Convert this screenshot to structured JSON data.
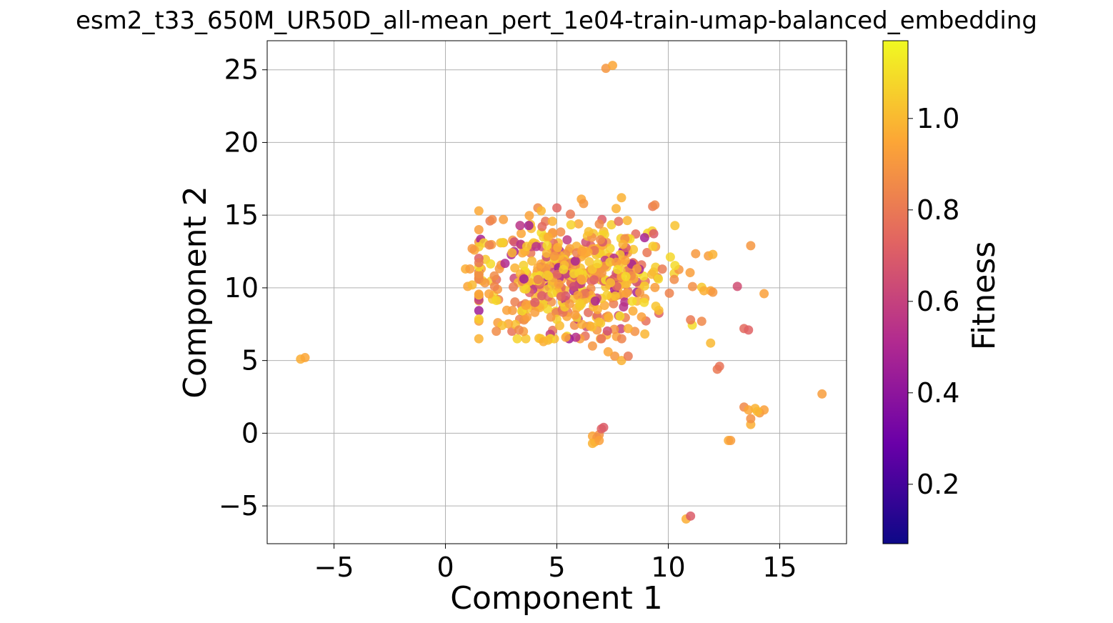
{
  "chart_data": {
    "type": "scatter",
    "title": "esm2_t33_650M_UR50D_all-mean_pert_1e04-train-umap-balanced_embedding",
    "xlabel": "Component 1",
    "ylabel": "Component 2",
    "xlim": [
      -8,
      18
    ],
    "ylim": [
      -7.6,
      27
    ],
    "xticks": [
      -5,
      0,
      5,
      10,
      15
    ],
    "xtick_labels": [
      "−5",
      "0",
      "5",
      "10",
      "15"
    ],
    "yticks": [
      -5,
      0,
      5,
      10,
      15,
      20,
      25
    ],
    "ytick_labels": [
      "−5",
      "0",
      "5",
      "10",
      "15",
      "20",
      "25"
    ],
    "grid": true,
    "colorbar": {
      "label": "Fitness",
      "range": [
        0.07,
        1.17
      ],
      "ticks": [
        0.2,
        0.4,
        0.6,
        0.8,
        1.0
      ],
      "tick_labels": [
        "0.2",
        "0.4",
        "0.6",
        "0.8",
        "1.0"
      ],
      "colormap": "plasma",
      "colors": [
        "#0d0887",
        "#6a00a8",
        "#b12a90",
        "#e16462",
        "#fca636",
        "#f0f921"
      ]
    },
    "cluster_main": {
      "center": [
        5.6,
        10.8
      ],
      "spread": [
        2.3,
        2.0
      ],
      "count": 520
    },
    "points": [
      [
        -6.5,
        5.1,
        0.97
      ],
      [
        -6.3,
        5.2,
        0.95
      ],
      [
        7.2,
        25.1,
        0.9
      ],
      [
        7.5,
        25.3,
        0.95
      ],
      [
        6.6,
        -0.2,
        0.95
      ],
      [
        6.7,
        -0.6,
        0.97
      ],
      [
        6.8,
        -0.3,
        0.9
      ],
      [
        6.9,
        -0.1,
        0.88
      ],
      [
        7.0,
        0.3,
        0.72
      ],
      [
        7.1,
        0.4,
        0.7
      ],
      [
        6.6,
        -0.7,
        0.98
      ],
      [
        6.9,
        -0.5,
        0.93
      ],
      [
        10.8,
        -5.9,
        0.97
      ],
      [
        11.0,
        -5.7,
        0.7
      ],
      [
        12.7,
        -0.5,
        0.96
      ],
      [
        12.8,
        -0.5,
        0.92
      ],
      [
        13.4,
        1.8,
        0.85
      ],
      [
        13.6,
        1.6,
        0.95
      ],
      [
        13.7,
        0.6,
        0.97
      ],
      [
        13.9,
        1.7,
        0.98
      ],
      [
        14.1,
        1.4,
        0.9
      ],
      [
        14.3,
        1.6,
        0.93
      ],
      [
        13.7,
        1.0,
        0.88
      ],
      [
        14.0,
        1.5,
        1.0
      ],
      [
        16.9,
        2.7,
        0.92
      ],
      [
        12.2,
        4.4,
        0.8
      ],
      [
        12.3,
        4.6,
        0.78
      ],
      [
        11.9,
        6.2,
        1.0
      ],
      [
        13.4,
        7.2,
        0.75
      ],
      [
        13.6,
        7.1,
        0.72
      ],
      [
        13.1,
        10.1,
        0.65
      ],
      [
        13.7,
        12.9,
        0.9
      ],
      [
        14.3,
        9.6,
        0.93
      ],
      [
        11.8,
        12.2,
        0.92
      ],
      [
        12.0,
        12.3,
        0.98
      ],
      [
        11.5,
        7.7,
        0.85
      ],
      [
        11.0,
        7.8,
        0.8
      ],
      [
        11.9,
        9.8,
        0.95
      ],
      [
        12.0,
        9.7,
        0.9
      ],
      [
        11.6,
        9.8,
        0.97
      ],
      [
        9.3,
        15.6,
        0.8
      ],
      [
        9.4,
        15.7,
        0.85
      ],
      [
        7.9,
        16.2,
        0.98
      ],
      [
        6.1,
        16.1,
        0.95
      ],
      [
        6.2,
        15.8,
        0.9
      ],
      [
        0.9,
        11.3,
        0.97
      ],
      [
        1.1,
        11.3,
        0.92
      ],
      [
        1.0,
        10.1,
        0.95
      ],
      [
        1.2,
        10.2,
        1.0
      ],
      [
        1.3,
        12.6,
        0.95
      ],
      [
        1.2,
        12.7,
        0.9
      ],
      [
        2.0,
        14.6,
        0.8
      ],
      [
        2.1,
        14.7,
        0.85
      ],
      [
        2.6,
        14.7,
        0.92
      ],
      [
        7.6,
        5.3,
        0.9
      ],
      [
        7.9,
        5.0,
        0.98
      ],
      [
        8.2,
        5.3,
        0.8
      ],
      [
        7.3,
        5.6,
        0.95
      ],
      [
        6.6,
        6.0,
        0.9
      ],
      [
        4.4,
        6.3,
        0.97
      ],
      [
        4.6,
        6.4,
        1.0
      ],
      [
        3.5,
        7.0,
        0.92
      ],
      [
        3.3,
        7.1,
        0.85
      ],
      [
        5.4,
        6.6,
        0.95
      ],
      [
        8.8,
        8.0,
        0.93
      ],
      [
        8.5,
        7.0,
        0.88
      ],
      [
        8.2,
        7.2,
        0.97
      ]
    ]
  }
}
